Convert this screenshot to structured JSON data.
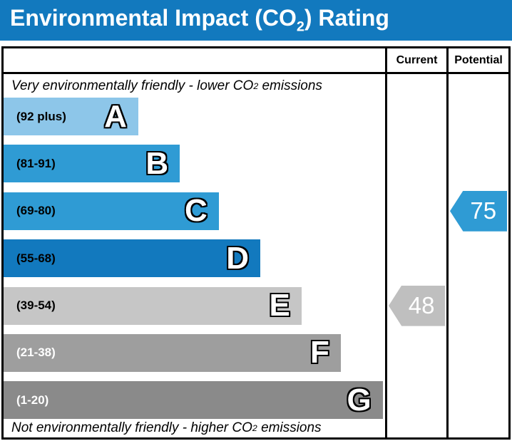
{
  "title": {
    "prefix": "Environmental Impact (CO",
    "sub": "2",
    "suffix": ") Rating"
  },
  "header": {
    "current": "Current",
    "potential": "Potential"
  },
  "captions": {
    "top": {
      "prefix": "Very environmentally friendly - lower CO",
      "sub": "2",
      "suffix": " emissions"
    },
    "bottom": {
      "prefix": "Not environmentally friendly - higher CO",
      "sub": "2",
      "suffix": " emissions"
    }
  },
  "colors": {
    "title_bar": "#1279be",
    "border": "#000000",
    "current_arrow": "#bfbfbf",
    "potential_arrow": "#2f9bd4"
  },
  "chart_data": {
    "type": "bar",
    "title": "Environmental Impact (CO2) Rating",
    "columns": [
      "Current",
      "Potential"
    ],
    "bands": [
      {
        "letter": "A",
        "range": "(92 plus)",
        "min": 92,
        "max": 100,
        "color": "#8dc6e9",
        "range_color": "#000000",
        "width_pct": 35.3
      },
      {
        "letter": "B",
        "range": "(81-91)",
        "min": 81,
        "max": 91,
        "color": "#2f9bd4",
        "range_color": "#000000",
        "width_pct": 46.2
      },
      {
        "letter": "C",
        "range": "(69-80)",
        "min": 69,
        "max": 80,
        "color": "#2f9bd4",
        "range_color": "#000000",
        "width_pct": 56.4
      },
      {
        "letter": "D",
        "range": "(55-68)",
        "min": 55,
        "max": 68,
        "color": "#1279be",
        "range_color": "#000000",
        "width_pct": 67.3
      },
      {
        "letter": "E",
        "range": "(39-54)",
        "min": 39,
        "max": 54,
        "color": "#c6c6c6",
        "range_color": "#000000",
        "width_pct": 78.1
      },
      {
        "letter": "F",
        "range": "(21-38)",
        "min": 21,
        "max": 38,
        "color": "#9e9e9e",
        "range_color": "#ffffff",
        "width_pct": 88.4
      },
      {
        "letter": "G",
        "range": "(1-20)",
        "min": 1,
        "max": 20,
        "color": "#8a8a8a",
        "range_color": "#ffffff",
        "width_pct": 99.4
      }
    ],
    "current": {
      "value": "48",
      "band": "E",
      "color": "#bfbfbf"
    },
    "potential": {
      "value": "75",
      "band": "C",
      "color": "#2f9bd4"
    }
  }
}
